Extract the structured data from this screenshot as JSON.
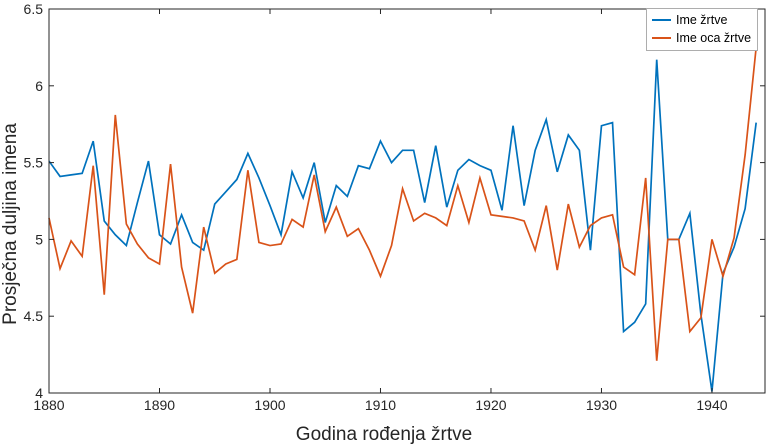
{
  "figure_title": "",
  "chart_data": {
    "type": "line",
    "title": "",
    "xlabel": "Godina rođenja žrtve",
    "ylabel": "Prosječna duljina imena",
    "xlim": [
      1880,
      1944.8
    ],
    "ylim": [
      4,
      6.5
    ],
    "x_ticks": [
      1880,
      1890,
      1900,
      1910,
      1920,
      1930,
      1940
    ],
    "y_ticks": [
      4,
      4.5,
      5,
      5.5,
      6,
      6.5
    ],
    "grid": false,
    "legend_position": "top-right",
    "axis_color": "#262626",
    "x": [
      1880,
      1881,
      1882,
      1883,
      1884,
      1885,
      1886,
      1887,
      1888,
      1889,
      1890,
      1891,
      1892,
      1893,
      1894,
      1895,
      1896,
      1897,
      1898,
      1899,
      1900,
      1901,
      1902,
      1903,
      1904,
      1905,
      1906,
      1907,
      1908,
      1909,
      1910,
      1911,
      1912,
      1913,
      1914,
      1915,
      1916,
      1917,
      1918,
      1919,
      1920,
      1921,
      1922,
      1923,
      1924,
      1925,
      1926,
      1927,
      1928,
      1929,
      1930,
      1931,
      1932,
      1933,
      1934,
      1935,
      1936,
      1937,
      1938,
      1939,
      1940,
      1941,
      1942,
      1943,
      1944
    ],
    "series": [
      {
        "name": "Ime žrtve",
        "color": "#0072BD",
        "values": [
          5.51,
          5.41,
          5.42,
          5.43,
          5.64,
          5.12,
          5.03,
          4.96,
          5.24,
          5.51,
          5.03,
          4.97,
          5.16,
          4.98,
          4.93,
          5.23,
          5.31,
          5.39,
          5.56,
          5.4,
          5.22,
          5.03,
          5.44,
          5.27,
          5.5,
          5.11,
          5.35,
          5.28,
          5.48,
          5.46,
          5.64,
          5.5,
          5.58,
          5.58,
          5.24,
          5.61,
          5.21,
          5.45,
          5.52,
          5.48,
          5.45,
          5.19,
          5.74,
          5.22,
          5.58,
          5.78,
          5.44,
          5.68,
          5.58,
          4.93,
          5.74,
          5.76,
          4.4,
          4.46,
          4.58,
          6.17,
          5.0,
          5.0,
          5.17,
          4.51,
          4.01,
          4.78,
          4.95,
          5.2,
          5.76
        ]
      },
      {
        "name": "Ime oca žrtve",
        "color": "#D95319",
        "values": [
          5.14,
          4.81,
          4.99,
          4.89,
          5.48,
          4.64,
          5.81,
          5.1,
          4.97,
          4.88,
          4.84,
          5.49,
          4.82,
          4.52,
          5.08,
          4.78,
          4.84,
          4.87,
          5.45,
          4.98,
          4.96,
          4.97,
          5.13,
          5.08,
          5.42,
          5.05,
          5.21,
          5.02,
          5.07,
          4.93,
          4.76,
          4.96,
          5.33,
          5.12,
          5.17,
          5.14,
          5.09,
          5.35,
          5.11,
          5.4,
          5.16,
          5.15,
          5.14,
          5.12,
          4.93,
          5.22,
          4.8,
          5.23,
          4.95,
          5.09,
          5.14,
          5.16,
          4.82,
          4.77,
          5.4,
          4.21,
          5.0,
          5.0,
          4.4,
          4.49,
          5.0,
          4.76,
          5.01,
          5.55,
          6.25
        ]
      }
    ]
  }
}
